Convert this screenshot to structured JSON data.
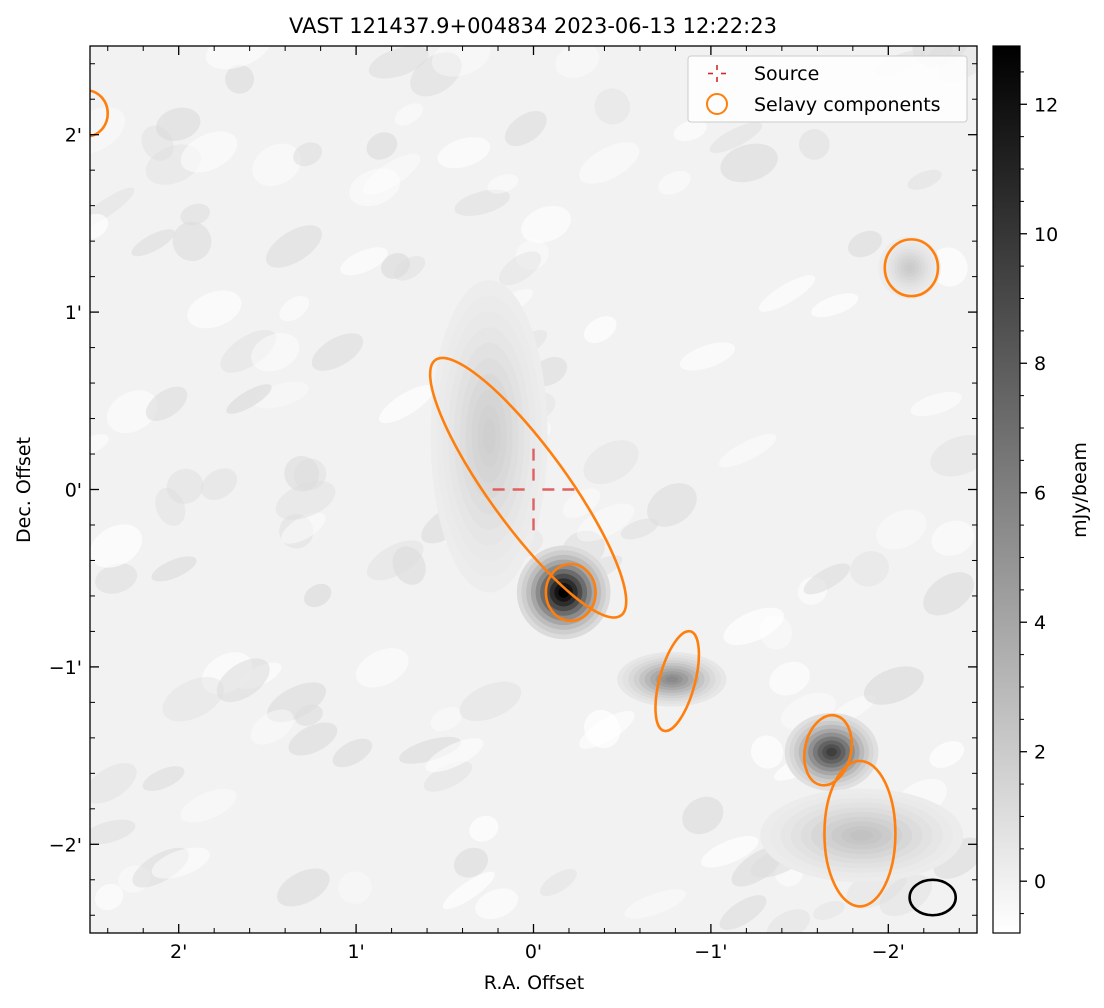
{
  "title": "VAST 121437.9+004834 2023-06-13 12:22:23",
  "xlabel": "R.A. Offset",
  "ylabel": "Dec. Offset",
  "x_ticks": [
    {
      "value": 2,
      "label": "2'"
    },
    {
      "value": 1,
      "label": "1'"
    },
    {
      "value": 0,
      "label": "0'"
    },
    {
      "value": -1,
      "label": "−1'"
    },
    {
      "value": -2,
      "label": "−2'"
    }
  ],
  "y_ticks": [
    {
      "value": 2,
      "label": "2'"
    },
    {
      "value": 1,
      "label": "1'"
    },
    {
      "value": 0,
      "label": "0'"
    },
    {
      "value": -1,
      "label": "−1'"
    },
    {
      "value": -2,
      "label": "−2'"
    }
  ],
  "colorbar": {
    "label": "mJy/beam",
    "min": -0.8,
    "max": 12.9,
    "ticks": [
      {
        "value": 0,
        "label": "0"
      },
      {
        "value": 2,
        "label": "2"
      },
      {
        "value": 4,
        "label": "4"
      },
      {
        "value": 6,
        "label": "6"
      },
      {
        "value": 8,
        "label": "8"
      },
      {
        "value": 10,
        "label": "10"
      },
      {
        "value": 12,
        "label": "12"
      }
    ]
  },
  "legend": {
    "placement": "upper-right",
    "entries": [
      {
        "label": "Source",
        "marker": "dashed-crosshair",
        "color": "#d62728"
      },
      {
        "label": "Selavy components",
        "marker": "open-circle",
        "color": "#ff7f0e"
      }
    ]
  },
  "colors": {
    "selavy": "#ff7f0e",
    "source_marker": "#e06060",
    "beam": "#000000"
  },
  "chart_data": {
    "type": "heatmap",
    "colormap": "gray_r",
    "units": "mJy/beam",
    "xlim": [
      2.5,
      -2.5
    ],
    "ylim": [
      -2.5,
      2.5
    ],
    "source_position": {
      "ra_offset": 0.0,
      "dec_offset": 0.0
    },
    "emission_blobs": [
      {
        "ra_offset": -0.17,
        "dec_offset": -0.58,
        "peak": 13.0,
        "sigma_ra": 0.12,
        "sigma_dec": 0.12
      },
      {
        "ra_offset": -0.78,
        "dec_offset": -1.07,
        "peak": 5.5,
        "sigma_ra": 0.14,
        "sigma_dec": 0.07
      },
      {
        "ra_offset": -1.68,
        "dec_offset": -1.48,
        "peak": 9.5,
        "sigma_ra": 0.12,
        "sigma_dec": 0.1
      },
      {
        "ra_offset": -1.85,
        "dec_offset": -1.95,
        "peak": 2.5,
        "sigma_ra": 0.26,
        "sigma_dec": 0.12
      },
      {
        "ra_offset": -2.12,
        "dec_offset": 1.25,
        "peak": 2.0,
        "sigma_ra": 0.08,
        "sigma_dec": 0.08
      },
      {
        "ra_offset": 0.25,
        "dec_offset": 0.3,
        "peak": 1.8,
        "sigma_ra": 0.15,
        "sigma_dec": 0.4
      }
    ],
    "selavy_components": [
      {
        "ra_offset": 0.03,
        "dec_offset": 0.01,
        "semi_major": 0.89,
        "semi_minor": 0.22,
        "pa_deg": -36
      },
      {
        "ra_offset": -0.21,
        "dec_offset": -0.58,
        "semi_major": 0.16,
        "semi_minor": 0.14,
        "pa_deg": 0
      },
      {
        "ra_offset": -0.81,
        "dec_offset": -1.08,
        "semi_major": 0.29,
        "semi_minor": 0.1,
        "pa_deg": 15
      },
      {
        "ra_offset": -1.66,
        "dec_offset": -1.47,
        "semi_major": 0.2,
        "semi_minor": 0.13,
        "pa_deg": 12
      },
      {
        "ra_offset": -1.84,
        "dec_offset": -1.94,
        "semi_major": 0.41,
        "semi_minor": 0.2,
        "pa_deg": 0
      },
      {
        "ra_offset": -2.13,
        "dec_offset": 1.25,
        "semi_major": 0.16,
        "semi_minor": 0.15,
        "pa_deg": 0
      },
      {
        "ra_offset": 2.52,
        "dec_offset": 2.12,
        "semi_major": 0.13,
        "semi_minor": 0.12,
        "pa_deg": 0
      }
    ],
    "beam": {
      "ra_offset": -2.25,
      "dec_offset": -2.3,
      "semi_major": 0.13,
      "semi_minor": 0.1,
      "pa_deg": 0
    }
  }
}
